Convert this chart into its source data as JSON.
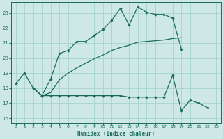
{
  "xlabel": "Humidex (Indice chaleur)",
  "background_color": "#cde8e5",
  "grid_color": "#9fcfca",
  "line_color": "#1a6b5a",
  "xlim": [
    -0.5,
    23.5
  ],
  "ylim": [
    15.7,
    23.7
  ],
  "yticks": [
    16,
    17,
    18,
    19,
    20,
    21,
    22,
    23
  ],
  "xticks": [
    0,
    1,
    2,
    3,
    4,
    5,
    6,
    7,
    8,
    9,
    10,
    11,
    12,
    13,
    14,
    15,
    16,
    17,
    18,
    19,
    20,
    21,
    22,
    23
  ],
  "line1_y": [
    18.3,
    19.0,
    18.0,
    17.5,
    18.6,
    20.3,
    20.5,
    21.1,
    21.1,
    21.5,
    21.9,
    22.5,
    23.3,
    22.2,
    23.4,
    23.05,
    22.9,
    22.9,
    22.65,
    20.6,
    null,
    null,
    null,
    null
  ],
  "line2_y": [
    18.3,
    null,
    18.0,
    17.5,
    17.7,
    18.55,
    19.0,
    19.35,
    19.65,
    19.95,
    20.2,
    20.5,
    20.7,
    20.85,
    21.05,
    21.1,
    21.15,
    21.2,
    21.3,
    21.35,
    null,
    null,
    null,
    null
  ],
  "line3_y": [
    18.3,
    null,
    18.0,
    17.5,
    17.5,
    17.5,
    17.5,
    17.5,
    17.5,
    17.5,
    17.5,
    17.5,
    17.5,
    17.4,
    17.4,
    17.4,
    17.4,
    17.4,
    18.85,
    16.5,
    17.2,
    17.0,
    16.7,
    null
  ]
}
